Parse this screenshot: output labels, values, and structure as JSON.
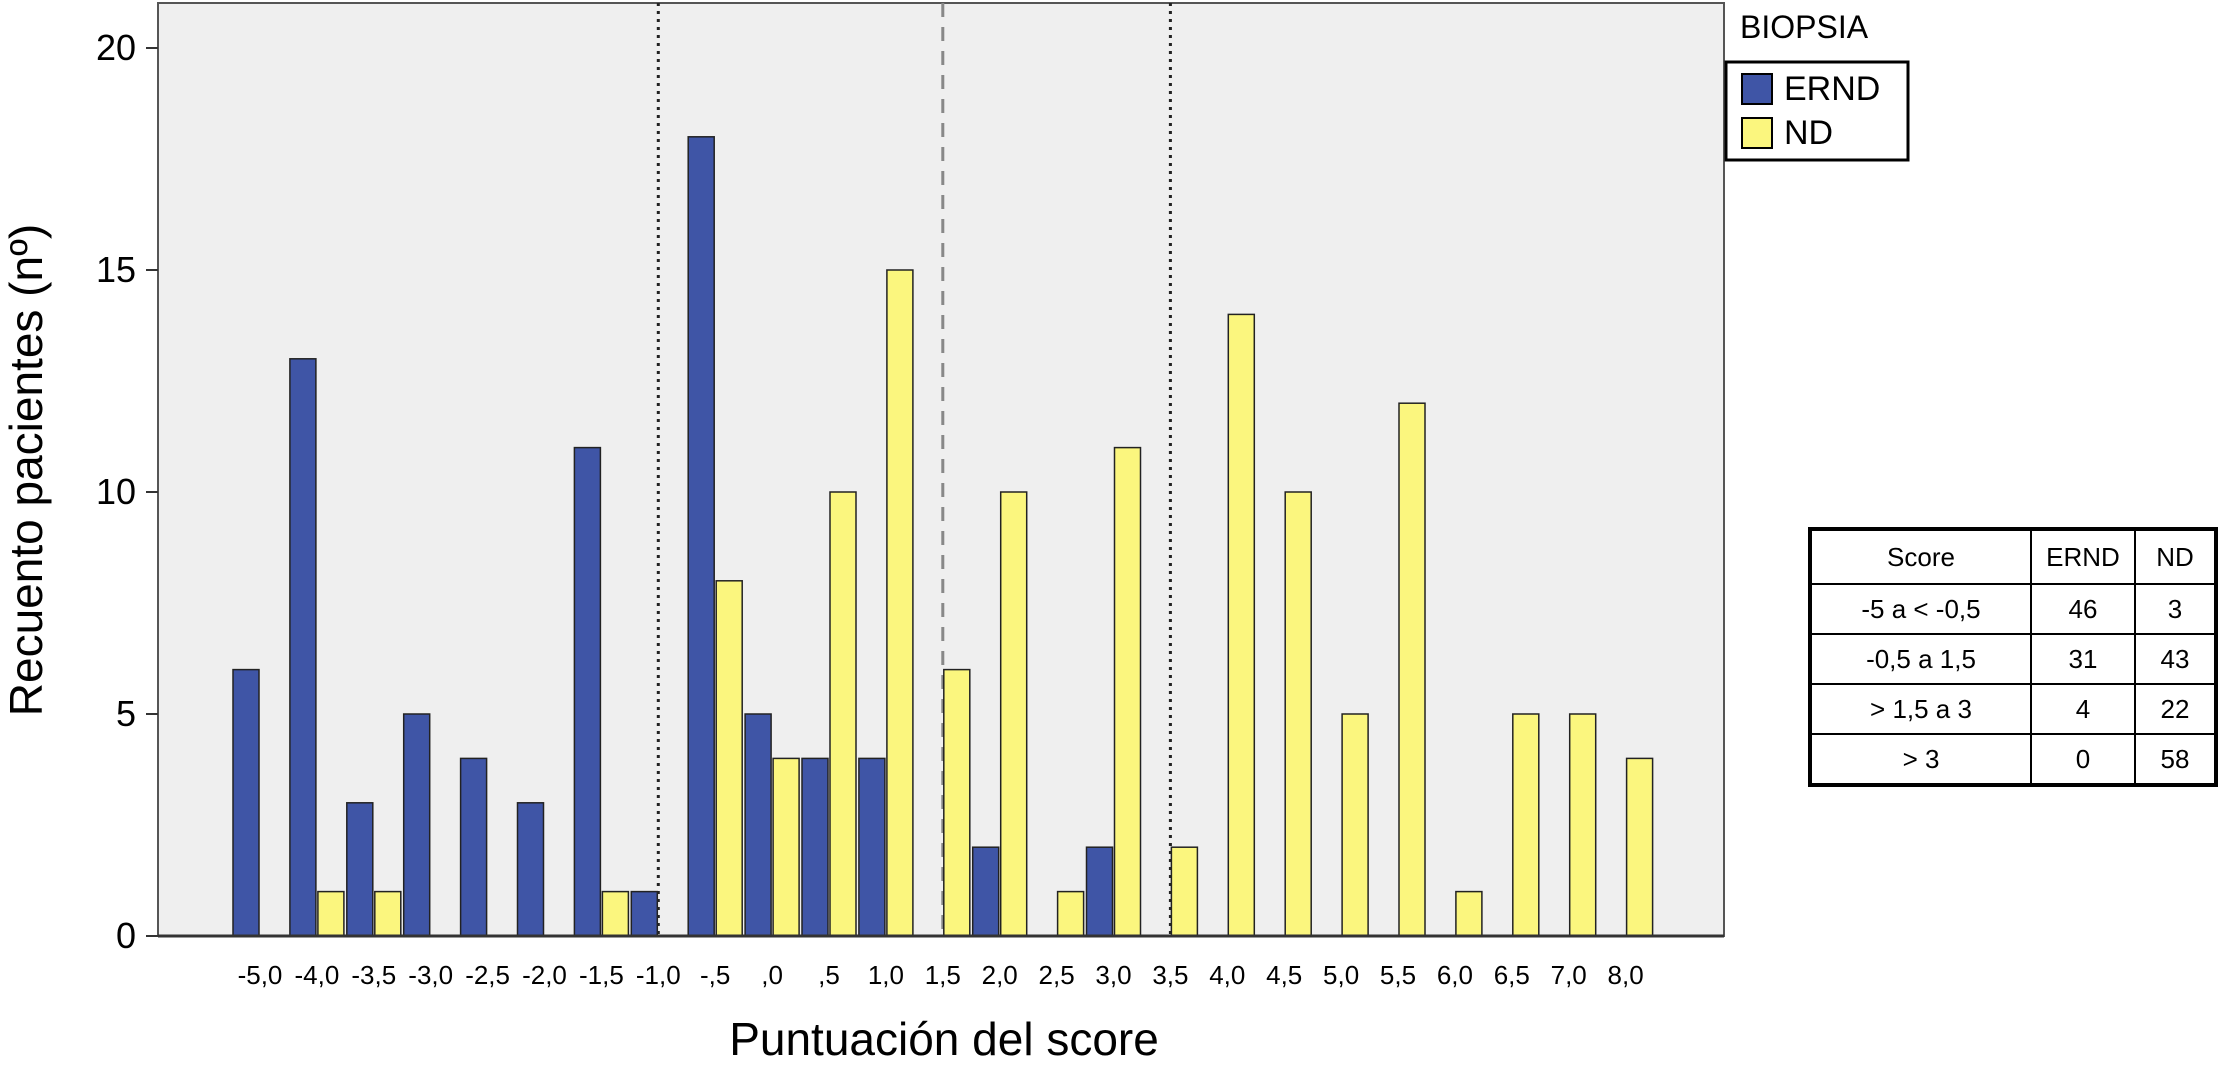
{
  "chart_data": {
    "type": "bar",
    "ylabel": "Recuento pacientes (nº)",
    "xlabel": "Puntuación del score",
    "ylim": [
      0,
      21
    ],
    "yticks": [
      0,
      5,
      10,
      15,
      20
    ],
    "grid": false,
    "legend_title": "BIOPSIA",
    "legend_position": "top-right",
    "categories": [
      "-5,0",
      "-4,0",
      "-3,5",
      "-3,0",
      "-2,5",
      "-2,0",
      "-1,5",
      "-1,0",
      "-,5",
      ",0",
      ",5",
      "1,0",
      "1,5",
      "2,0",
      "2,5",
      "3,0",
      "3,5",
      "4,0",
      "4,5",
      "5,0",
      "5,5",
      "6,0",
      "6,5",
      "7,0",
      "8,0"
    ],
    "series": [
      {
        "name": "ERND",
        "color": "#3f55a6",
        "values": [
          6,
          13,
          3,
          5,
          4,
          3,
          11,
          1,
          18,
          5,
          4,
          4,
          0,
          2,
          0,
          2,
          0,
          0,
          0,
          0,
          0,
          0,
          0,
          0,
          0
        ]
      },
      {
        "name": "ND",
        "color": "#fbf67e",
        "values": [
          0,
          1,
          1,
          0,
          0,
          0,
          1,
          0,
          8,
          4,
          10,
          15,
          6,
          10,
          1,
          11,
          2,
          14,
          10,
          5,
          12,
          1,
          5,
          5,
          4
        ]
      }
    ],
    "reference_lines": [
      {
        "x": "-1,0",
        "style": "dotted"
      },
      {
        "x": "1,5",
        "style": "dashed"
      },
      {
        "x": "3,5",
        "style": "dotted"
      }
    ]
  },
  "table": {
    "headers": [
      "Score",
      "ERND",
      "ND"
    ],
    "rows": [
      [
        "-5 a < -0,5",
        "46",
        "3"
      ],
      [
        "-0,5 a 1,5",
        "31",
        "43"
      ],
      [
        "> 1,5 a 3",
        "4",
        "22"
      ],
      [
        "> 3",
        "0",
        "58"
      ]
    ]
  }
}
